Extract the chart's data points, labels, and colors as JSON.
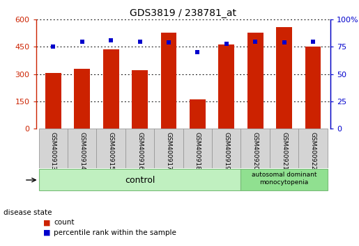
{
  "title": "GDS3819 / 238781_at",
  "categories": [
    "GSM400913",
    "GSM400914",
    "GSM400915",
    "GSM400916",
    "GSM400917",
    "GSM400918",
    "GSM400919",
    "GSM400920",
    "GSM400921",
    "GSM400922"
  ],
  "bar_values": [
    305,
    328,
    438,
    322,
    527,
    162,
    465,
    528,
    560,
    452
  ],
  "percentile_values": [
    75,
    80,
    81,
    80,
    79,
    70,
    78,
    80,
    79,
    80
  ],
  "left_ylim": [
    0,
    600
  ],
  "right_ylim": [
    0,
    100
  ],
  "left_yticks": [
    0,
    150,
    300,
    450,
    600
  ],
  "right_yticks": [
    0,
    25,
    50,
    75,
    100
  ],
  "left_yticklabels": [
    "0",
    "150",
    "300",
    "450",
    "600"
  ],
  "right_yticklabels": [
    "0",
    "25",
    "50",
    "75",
    "100%"
  ],
  "bar_color": "#cc2200",
  "dot_color": "#0000cc",
  "control_color": "#c0f0c0",
  "disease_color": "#90e090",
  "label_bg_color": "#d4d4d4",
  "label_border_color": "#999999",
  "control_label": "control",
  "disease_label": "autosomal dominant\nmonocytopenia",
  "disease_state_label": "disease state",
  "legend_count": "count",
  "legend_percentile": "percentile rank within the sample",
  "n_bars": 10,
  "figwidth": 5.15,
  "figheight": 3.54
}
